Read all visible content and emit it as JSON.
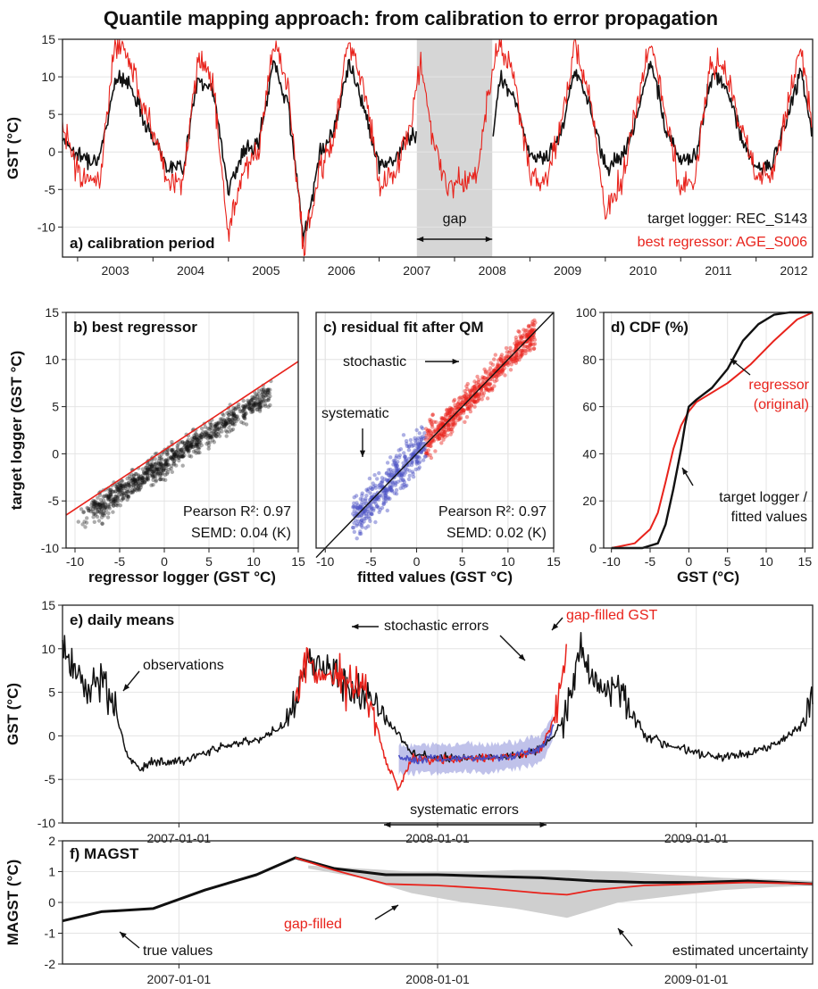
{
  "title": "Quantile mapping approach: from calibration to error propagation",
  "colors": {
    "black_series": "#111111",
    "red_series": "#e8221b",
    "blue_series": "#4a4fc4",
    "band": "#cfcfcf"
  },
  "chart_data": [
    {
      "panel": "a",
      "type": "line",
      "title": "a) calibration period",
      "ylabel": "GST (°C)",
      "xlim": [
        2002.8,
        2012.75
      ],
      "ylim": [
        -14,
        15
      ],
      "x_ticks": [
        "2003",
        "2004",
        "2005",
        "2006",
        "2007",
        "2008",
        "2009",
        "2010",
        "2011",
        "2012"
      ],
      "y_ticks": [
        "-10",
        "-5",
        "0",
        "5",
        "10",
        "15"
      ],
      "shaded_region": {
        "x": [
          2007.5,
          2008.5
        ],
        "label": "gap"
      },
      "legend": [
        "target logger: REC_S143",
        "best regressor: AGE_S006"
      ],
      "series": [
        {
          "name": "target logger: REC_S143",
          "color": "#111111",
          "x": [
            2002.8,
            2003.0,
            2003.3,
            2003.5,
            2003.7,
            2003.9,
            2004.2,
            2004.4,
            2004.6,
            2004.8,
            2005.0,
            2005.2,
            2005.4,
            2005.6,
            2005.8,
            2006.0,
            2006.2,
            2006.4,
            2006.6,
            2006.8,
            2007.0,
            2007.2,
            2007.4,
            2008.5,
            2008.6,
            2008.8,
            2009.0,
            2009.2,
            2009.4,
            2009.6,
            2009.8,
            2010.0,
            2010.2,
            2010.4,
            2010.6,
            2010.8,
            2011.0,
            2011.2,
            2011.4,
            2011.6,
            2011.8,
            2012.0,
            2012.2,
            2012.4,
            2012.6,
            2012.75
          ],
          "values": [
            2,
            -0.5,
            -1,
            10,
            9,
            4,
            -2,
            -2,
            10,
            8,
            -5,
            0,
            1,
            12,
            6,
            -12,
            -0.5,
            3,
            12,
            6,
            -2,
            -1,
            2,
            1,
            10,
            7,
            -0.5,
            -1,
            2,
            11,
            6,
            -2,
            -1,
            4,
            12,
            3,
            -1,
            -0.5,
            10,
            9,
            2,
            -2,
            -2,
            4,
            11,
            2
          ]
        },
        {
          "name": "best regressor: AGE_S006",
          "color": "#e8221b",
          "x": [
            2002.8,
            2003.0,
            2003.3,
            2003.5,
            2003.7,
            2003.9,
            2004.2,
            2004.4,
            2004.6,
            2004.8,
            2005.0,
            2005.2,
            2005.4,
            2005.6,
            2005.8,
            2006.0,
            2006.2,
            2006.4,
            2006.6,
            2006.8,
            2007.0,
            2007.2,
            2007.4,
            2007.55,
            2007.7,
            2007.9,
            2008.1,
            2008.3,
            2008.45,
            2008.6,
            2008.8,
            2009.0,
            2009.2,
            2009.4,
            2009.6,
            2009.8,
            2010.0,
            2010.2,
            2010.4,
            2010.6,
            2010.8,
            2011.0,
            2011.2,
            2011.4,
            2011.6,
            2011.8,
            2012.0,
            2012.2,
            2012.4,
            2012.6,
            2012.75
          ],
          "values": [
            4,
            -3,
            -4,
            15,
            12,
            6,
            -4,
            -4,
            13,
            9,
            -11,
            -2,
            0,
            15,
            8,
            -13,
            -3,
            2,
            15,
            9,
            -4,
            -3,
            3,
            12,
            2,
            -4,
            -4,
            -3,
            8,
            15,
            9,
            -3,
            -4,
            3,
            14,
            8,
            -9,
            -4,
            5,
            15,
            5,
            -5,
            -3,
            12,
            11,
            3,
            -3,
            -4,
            5,
            14,
            3
          ]
        }
      ]
    },
    {
      "panel": "b",
      "type": "scatter",
      "title": "b) best regressor",
      "xlabel": "regressor logger (GST °C)",
      "ylabel": "target logger (GST °C)",
      "xlim": [
        -11,
        15
      ],
      "ylim": [
        -10,
        15
      ],
      "x_ticks": [
        "-10",
        "-5",
        "0",
        "5",
        "10",
        "15"
      ],
      "y_ticks": [
        "-10",
        "-5",
        "0",
        "5",
        "10",
        "15"
      ],
      "fit_line": {
        "x": [
          -11,
          15
        ],
        "y": [
          -6.5,
          9.8
        ]
      },
      "stats": [
        "Pearson R²: 0.97",
        "SEMD: 0.04 (K)"
      ]
    },
    {
      "panel": "c",
      "type": "scatter",
      "title": "c) residual fit after QM",
      "xlabel": "fitted values (GST °C)",
      "xlim": [
        -11,
        15
      ],
      "ylim": [
        -10,
        15
      ],
      "x_ticks": [
        "-10",
        "-5",
        "0",
        "5",
        "10",
        "15"
      ],
      "fit_line": {
        "x": [
          -11,
          15
        ],
        "y": [
          -11,
          15
        ]
      },
      "annotations": [
        "stochastic",
        "systematic"
      ],
      "stats": [
        "Pearson R²: 0.97",
        "SEMD: 0.02 (K)"
      ]
    },
    {
      "panel": "d",
      "type": "line",
      "title": "d) CDF (%)",
      "xlabel": "GST (°C)",
      "xlim": [
        -11,
        16
      ],
      "ylim": [
        0,
        100
      ],
      "x_ticks": [
        "-10",
        "-5",
        "0",
        "5",
        "10",
        "15"
      ],
      "y_ticks": [
        "0",
        "20",
        "40",
        "60",
        "80",
        "100"
      ],
      "annotations": [
        "regressor",
        "(original)",
        "target logger /",
        "fitted values"
      ],
      "series": [
        {
          "name": "regressor (original)",
          "color": "#e8221b",
          "x": [
            -10,
            -7,
            -5,
            -4,
            -3,
            -2,
            -1,
            0,
            1,
            3,
            5,
            8,
            11,
            14,
            16
          ],
          "values": [
            0,
            2,
            8,
            15,
            28,
            42,
            52,
            58,
            62,
            66,
            70,
            78,
            88,
            97,
            100
          ]
        },
        {
          "name": "target logger / fitted values",
          "color": "#111111",
          "x": [
            -10,
            -6,
            -4,
            -3,
            -2,
            -1,
            -0.5,
            0,
            1,
            3,
            5,
            7,
            9,
            11,
            13,
            16
          ],
          "values": [
            0,
            0,
            2,
            10,
            25,
            42,
            52,
            60,
            63,
            68,
            76,
            88,
            95,
            99,
            100,
            100
          ]
        }
      ]
    },
    {
      "panel": "e",
      "type": "line",
      "title": "e) daily means",
      "ylabel": "GST (°C)",
      "xlim": [
        2006.55,
        2009.45
      ],
      "ylim": [
        -10,
        15
      ],
      "x_ticks": [
        "2007-01-01",
        "2008-01-01",
        "2009-01-01"
      ],
      "y_ticks": [
        "-10",
        "-5",
        "0",
        "5",
        "10",
        "15"
      ],
      "annotations": [
        "observations",
        "stochastic errors",
        "gap-filled GST",
        "systematic errors"
      ],
      "series": [
        {
          "name": "observations",
          "color": "#111111",
          "x": [
            2006.55,
            2006.6,
            2006.65,
            2006.7,
            2006.75,
            2006.8,
            2006.85,
            2006.9,
            2007.0,
            2007.1,
            2007.2,
            2007.3,
            2007.4,
            2007.45,
            2007.5,
            2007.6,
            2007.7,
            2007.8,
            2007.9,
            2008.0,
            2008.1,
            2008.2,
            2008.3,
            2008.4,
            2008.45,
            2008.5,
            2008.55,
            2008.6,
            2008.65,
            2008.7,
            2008.8,
            2008.9,
            2009.0,
            2009.1,
            2009.2,
            2009.3,
            2009.4,
            2009.45
          ],
          "values": [
            10,
            8,
            5,
            7,
            3,
            -2,
            -4,
            -3,
            -3,
            -2,
            -1,
            -0.5,
            1,
            4,
            9,
            7,
            5,
            2,
            -2,
            -2.5,
            -2.5,
            -2.5,
            -2.3,
            -1.5,
            0,
            3,
            10,
            7,
            5,
            6,
            0,
            -1,
            -2,
            -2.5,
            -2,
            -1,
            1,
            4
          ]
        },
        {
          "name": "gap-filled GST",
          "color": "#e8221b",
          "x": [
            2007.45,
            2007.5,
            2007.55,
            2007.6,
            2007.65,
            2007.7,
            2007.75,
            2007.8,
            2007.85,
            2007.9,
            2008.0,
            2008.1,
            2008.2,
            2008.3,
            2008.4,
            2008.45,
            2008.5
          ],
          "values": [
            4,
            9,
            6,
            8,
            5,
            6,
            3,
            -3,
            -6,
            -2.5,
            -2.8,
            -2.6,
            -2.5,
            -2.4,
            -1.5,
            2,
            11
          ]
        },
        {
          "name": "systematic band",
          "color": "#4a4fc4",
          "x": [
            2007.85,
            2007.9,
            2008.0,
            2008.1,
            2008.2,
            2008.3,
            2008.4,
            2008.45
          ],
          "values": [
            -2.5,
            -2.8,
            -2.6,
            -2.5,
            -2.5,
            -2.3,
            -1.5,
            1
          ]
        }
      ]
    },
    {
      "panel": "f",
      "type": "line",
      "title": "f) MAGST",
      "ylabel": "MAGST (°C)",
      "xlim": [
        2006.55,
        2009.45
      ],
      "ylim": [
        -2,
        2
      ],
      "x_ticks": [
        "2007-01-01",
        "2008-01-01",
        "2009-01-01"
      ],
      "y_ticks": [
        "-2",
        "-1",
        "0",
        "1",
        "2"
      ],
      "annotations": [
        "true values",
        "gap-filled",
        "estimated uncertainty"
      ],
      "series": [
        {
          "name": "true values",
          "color": "#111111",
          "x": [
            2006.55,
            2006.7,
            2006.9,
            2007.1,
            2007.3,
            2007.45,
            2007.6,
            2007.8,
            2008.0,
            2008.2,
            2008.4,
            2008.6,
            2008.8,
            2009.0,
            2009.2,
            2009.45
          ],
          "values": [
            -0.6,
            -0.3,
            -0.2,
            0.4,
            0.9,
            1.45,
            1.1,
            0.9,
            0.9,
            0.85,
            0.8,
            0.7,
            0.65,
            0.65,
            0.7,
            0.6
          ]
        },
        {
          "name": "gap-filled",
          "color": "#e8221b",
          "x": [
            2007.45,
            2007.6,
            2007.8,
            2008.0,
            2008.2,
            2008.4,
            2008.5,
            2008.6,
            2008.8,
            2009.0,
            2009.2,
            2009.45
          ],
          "values": [
            1.45,
            1.05,
            0.6,
            0.55,
            0.45,
            0.3,
            0.25,
            0.4,
            0.55,
            0.6,
            0.65,
            0.6
          ]
        }
      ],
      "uncertainty_band": {
        "x": [
          2007.5,
          2007.7,
          2007.9,
          2008.1,
          2008.3,
          2008.5,
          2008.7,
          2008.9,
          2009.1,
          2009.3,
          2009.45
        ],
        "low": [
          1.1,
          0.8,
          0.3,
          0.0,
          -0.2,
          -0.5,
          0.0,
          0.2,
          0.4,
          0.5,
          0.55
        ],
        "high": [
          1.2,
          1.1,
          1.0,
          1.0,
          1.05,
          1.05,
          1.0,
          0.9,
          0.8,
          0.75,
          0.7
        ]
      }
    }
  ]
}
